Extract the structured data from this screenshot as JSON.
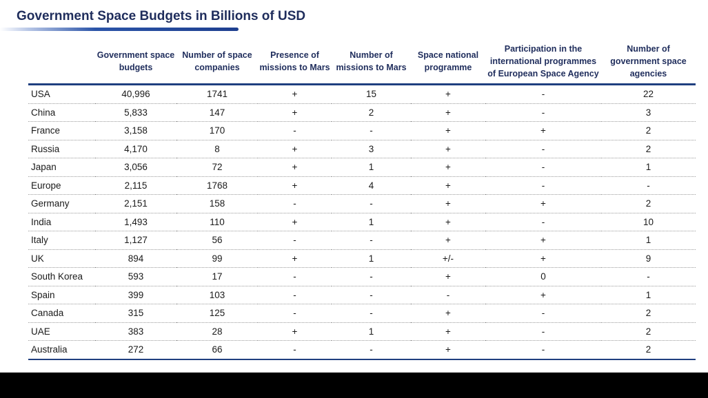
{
  "title": "Government Space Budgets in Billions of USD",
  "headers": [
    "",
    "Government space budgets",
    "Number of space companies",
    "Presence of missions to Mars",
    "Number of missions to Mars",
    "Space national programme",
    "Participation in the international programmes of European Space Agency",
    "Number of government space agencies"
  ],
  "rows": [
    [
      "USA",
      "40,996",
      "1741",
      "+",
      "15",
      "+",
      "-",
      "22"
    ],
    [
      "China",
      "5,833",
      "147",
      "+",
      "2",
      "+",
      "-",
      "3"
    ],
    [
      "France",
      "3,158",
      "170",
      "-",
      "-",
      "+",
      "+",
      "2"
    ],
    [
      "Russia",
      "4,170",
      "8",
      "+",
      "3",
      "+",
      "-",
      "2"
    ],
    [
      "Japan",
      "3,056",
      "72",
      "+",
      "1",
      "+",
      "-",
      "1"
    ],
    [
      "Europe",
      "2,115",
      "1768",
      "+",
      "4",
      "+",
      "-",
      "-"
    ],
    [
      "Germany",
      "2,151",
      "158",
      "-",
      "-",
      "+",
      "+",
      "2"
    ],
    [
      "India",
      "1,493",
      "110",
      "+",
      "1",
      "+",
      "-",
      "10"
    ],
    [
      "Italy",
      "1,127",
      "56",
      "-",
      "-",
      "+",
      "+",
      "1"
    ],
    [
      "UK",
      "894",
      "99",
      "+",
      "1",
      "+/-",
      "+",
      "9"
    ],
    [
      "South Korea",
      "593",
      "17",
      "-",
      "-",
      "+",
      "0",
      "-"
    ],
    [
      "Spain",
      "399",
      "103",
      "-",
      "-",
      "-",
      "+",
      "1"
    ],
    [
      "Canada",
      "315",
      "125",
      "-",
      "-",
      "+",
      "-",
      "2"
    ],
    [
      "UAE",
      "383",
      "28",
      "+",
      "1",
      "+",
      "-",
      "2"
    ],
    [
      "Australia",
      "272",
      "66",
      "-",
      "-",
      "+",
      "-",
      "2"
    ]
  ]
}
